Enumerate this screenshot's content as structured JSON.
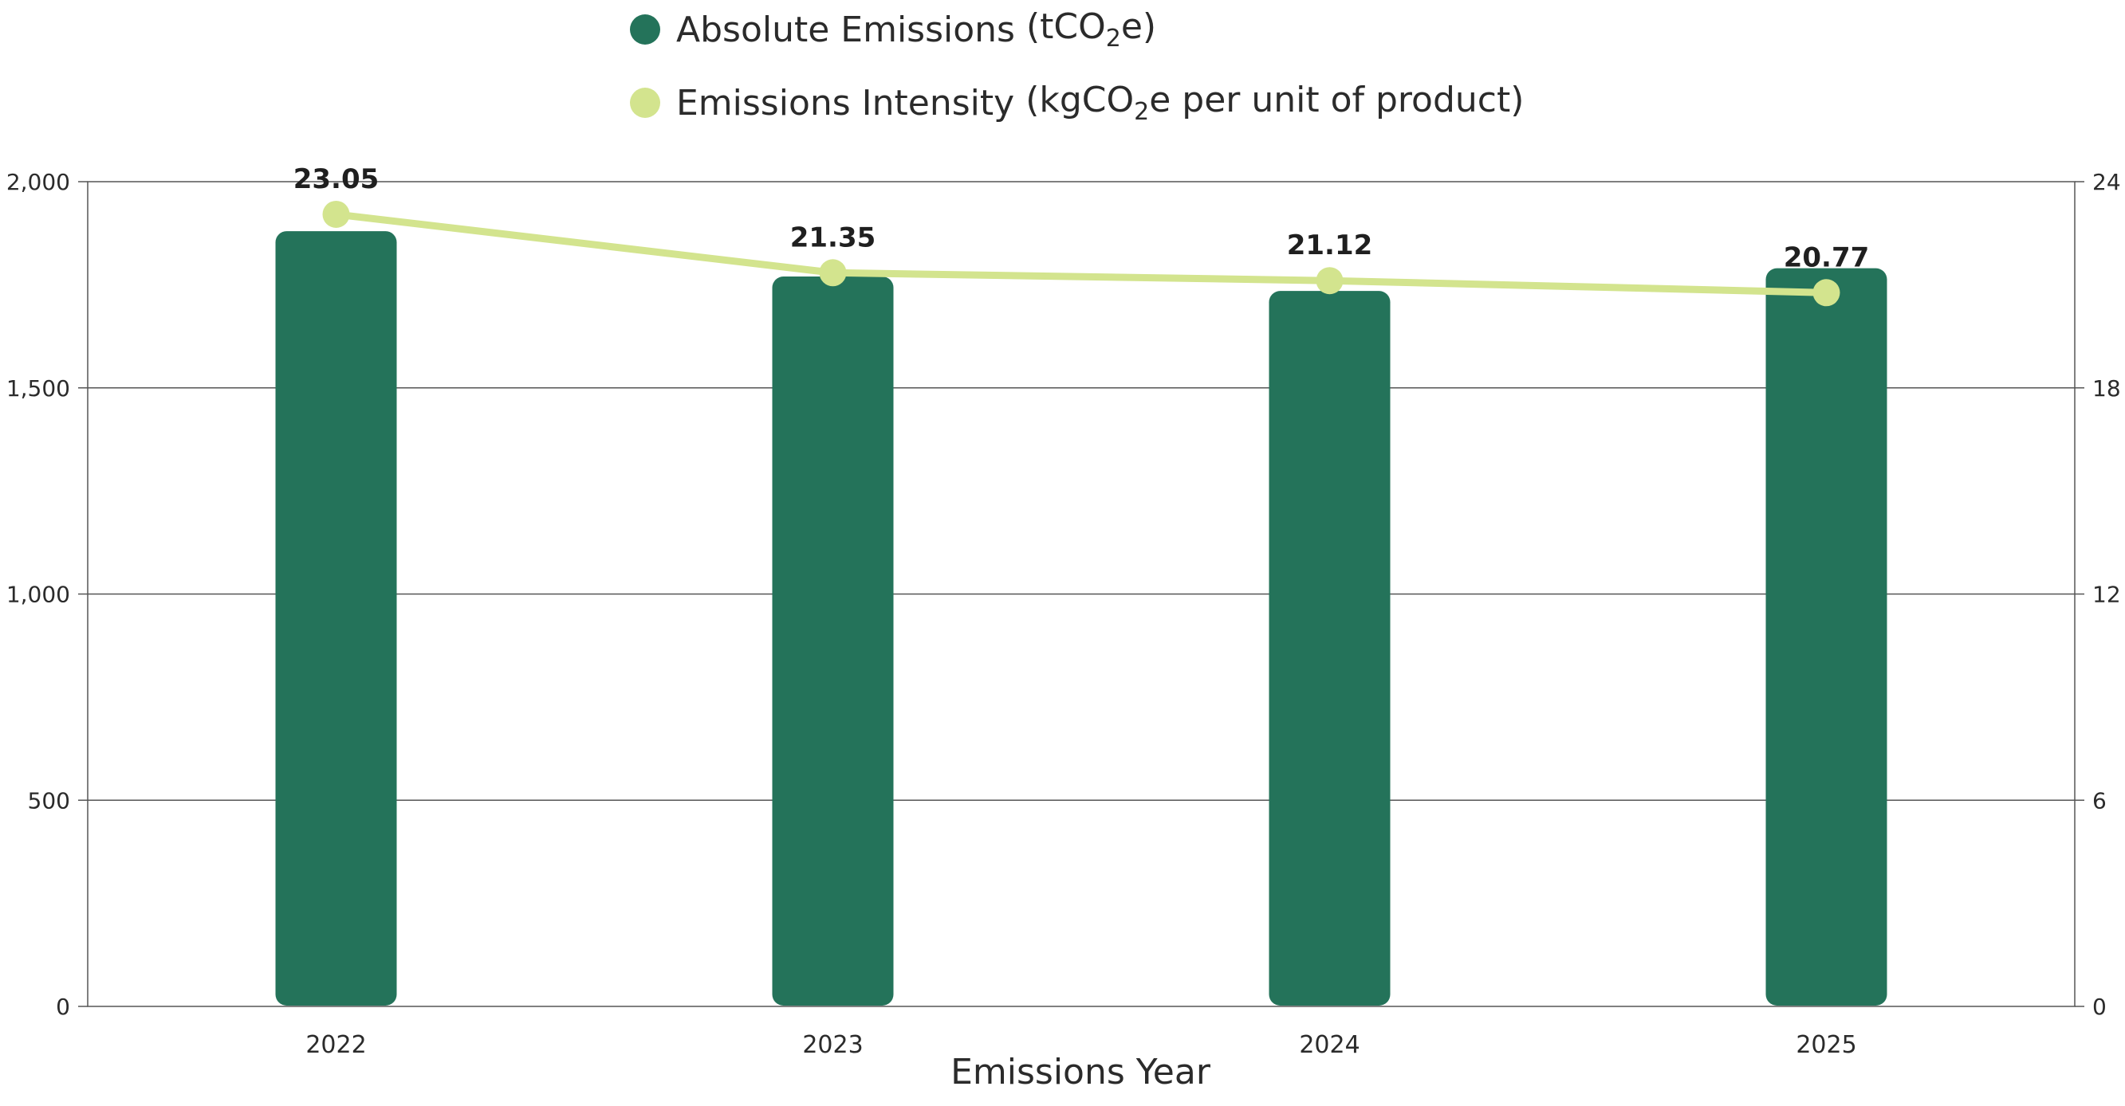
{
  "legend": {
    "absolute": {
      "label": "Absolute Emissions",
      "unit_prefix": "(tCO",
      "unit_sub": "2",
      "unit_suffix": "e)"
    },
    "intensity": {
      "label": "Emissions Intensity",
      "unit_prefix": "(kgCO",
      "unit_sub": "2",
      "unit_suffix": "e per unit of product)"
    }
  },
  "colors": {
    "bar": "#24735a",
    "line": "#d3e48e",
    "grid": "#555555"
  },
  "chart_data": {
    "type": "bar",
    "categories": [
      "2022",
      "2023",
      "2024",
      "2025"
    ],
    "series": [
      {
        "name": "Absolute Emissions (tCO2e)",
        "type": "bar",
        "axis": "left",
        "values": [
          1880,
          1770,
          1735,
          1790
        ]
      },
      {
        "name": "Emissions Intensity (kgCO2e per unit of product)",
        "type": "line",
        "axis": "right",
        "values": [
          23.05,
          21.35,
          21.12,
          20.77
        ]
      }
    ],
    "data_labels": [
      "23.05",
      "21.35",
      "21.12",
      "20.77"
    ],
    "xlabel": "Emissions Year",
    "ylabel": "",
    "ylim": [
      0,
      2000
    ],
    "y2lim": [
      0,
      24
    ],
    "yticks": [
      0,
      500,
      1000,
      1500,
      2000
    ],
    "ytick_labels": [
      "0",
      "500",
      "1,000",
      "1,500",
      "2,000"
    ],
    "y2ticks": [
      0,
      6,
      12,
      18,
      24
    ],
    "y2tick_labels": [
      "0",
      "6",
      "12",
      "18",
      "24"
    ],
    "grid": true,
    "legend_position": "top-center"
  }
}
